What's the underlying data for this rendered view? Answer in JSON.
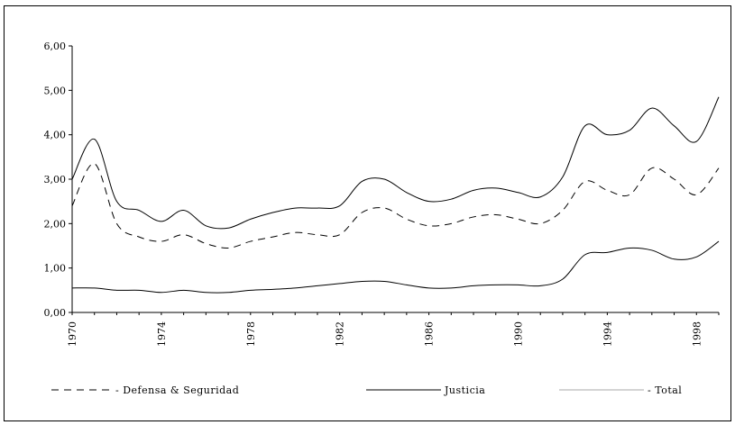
{
  "chart_data": {
    "type": "line",
    "title": "",
    "xlabel": "",
    "ylabel": "",
    "ylim": [
      0,
      6
    ],
    "xlim": [
      1970,
      1999
    ],
    "grid": false,
    "legend_position": "bottom",
    "y_ticks": [
      "0,00",
      "1,00",
      "2,00",
      "3,00",
      "4,00",
      "5,00",
      "6,00"
    ],
    "x_ticks": [
      "1970",
      "1974",
      "1978",
      "1982",
      "1986",
      "1990",
      "1994",
      "1998"
    ],
    "x": [
      1970,
      1971,
      1972,
      1973,
      1974,
      1975,
      1976,
      1977,
      1978,
      1979,
      1980,
      1981,
      1982,
      1983,
      1984,
      1985,
      1986,
      1987,
      1988,
      1989,
      1990,
      1991,
      1992,
      1993,
      1994,
      1995,
      1996,
      1997,
      1998,
      1999
    ],
    "series": [
      {
        "name": "Defensa & Seguridad",
        "style": "dashed",
        "values": [
          2.4,
          3.35,
          2.0,
          1.7,
          1.6,
          1.75,
          1.55,
          1.45,
          1.6,
          1.7,
          1.8,
          1.75,
          1.75,
          2.25,
          2.35,
          2.1,
          1.95,
          2.0,
          2.15,
          2.2,
          2.1,
          2.0,
          2.3,
          2.95,
          2.75,
          2.65,
          3.25,
          3.0,
          2.65,
          3.25
        ]
      },
      {
        "name": "Justicia",
        "style": "solid",
        "values": [
          0.55,
          0.55,
          0.5,
          0.5,
          0.45,
          0.5,
          0.45,
          0.45,
          0.5,
          0.52,
          0.55,
          0.6,
          0.65,
          0.7,
          0.7,
          0.62,
          0.55,
          0.55,
          0.6,
          0.62,
          0.62,
          0.6,
          0.75,
          1.3,
          1.35,
          1.45,
          1.4,
          1.2,
          1.25,
          1.6
        ]
      },
      {
        "name": "Total",
        "style": "solid",
        "values": [
          3.0,
          3.9,
          2.5,
          2.3,
          2.05,
          2.3,
          1.95,
          1.9,
          2.1,
          2.25,
          2.35,
          2.35,
          2.4,
          2.95,
          3.0,
          2.7,
          2.5,
          2.55,
          2.75,
          2.8,
          2.7,
          2.6,
          3.05,
          4.2,
          4.0,
          4.1,
          4.6,
          4.2,
          3.85,
          4.85
        ]
      }
    ]
  },
  "legend": {
    "defensa_label": "- Defensa & Seguridad",
    "justicia_label": "Justicia",
    "total_label": "- Total"
  }
}
